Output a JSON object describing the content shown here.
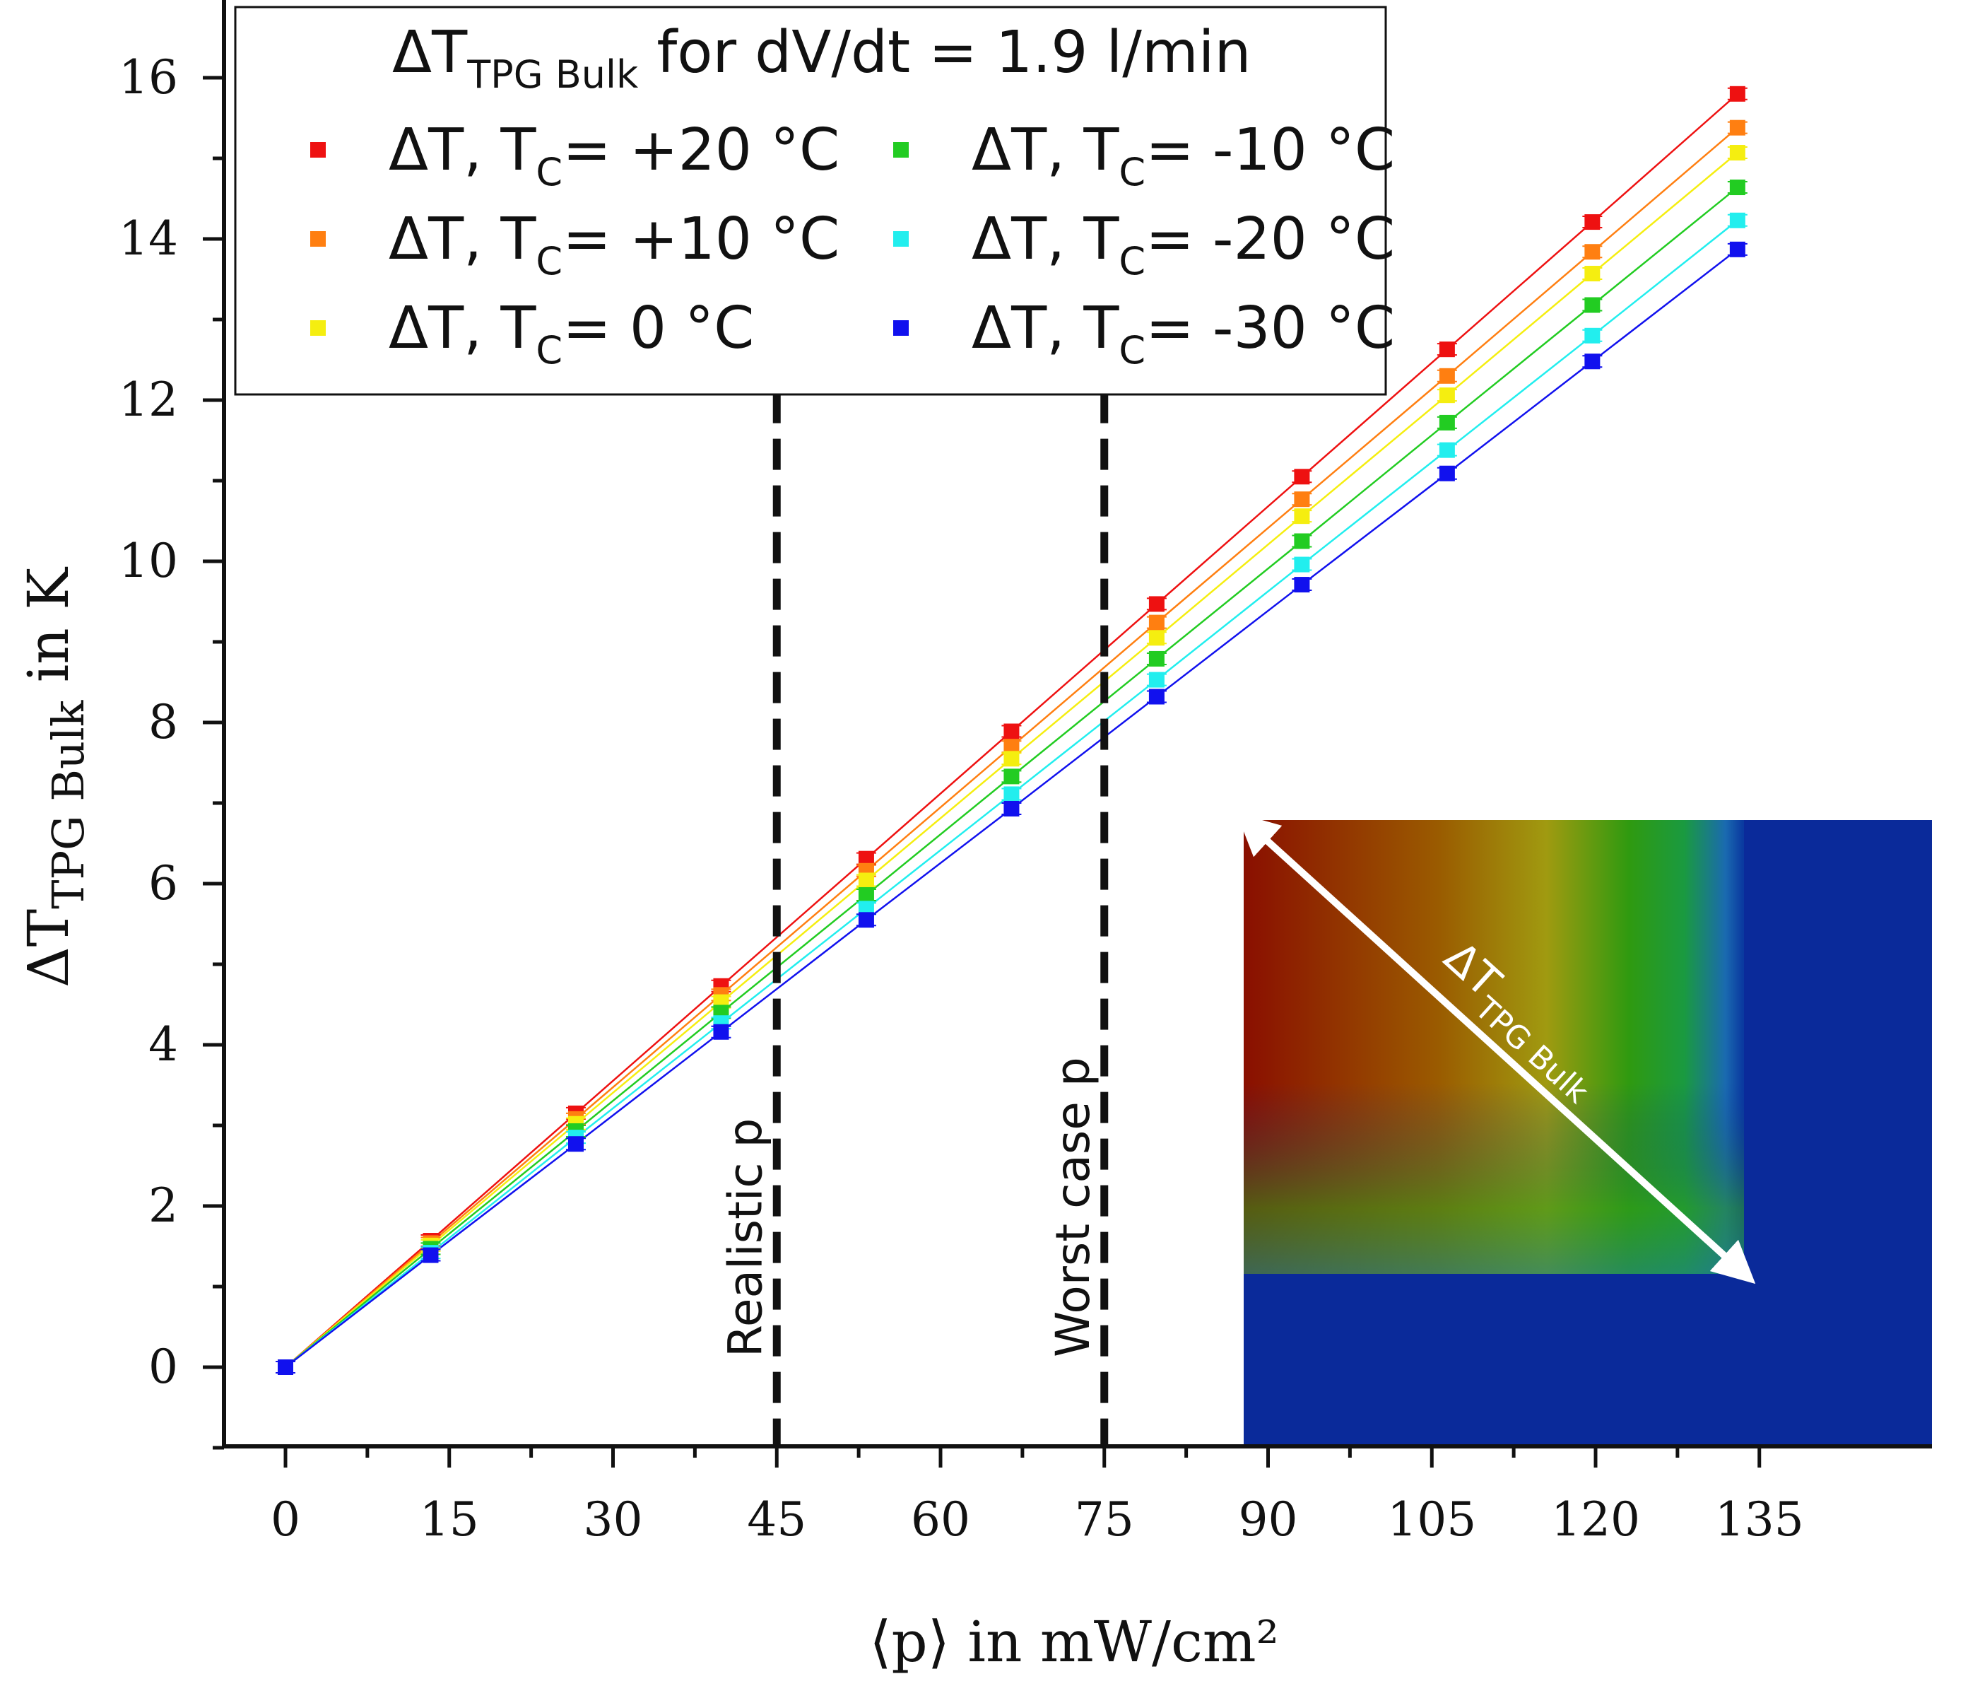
{
  "chart_data": {
    "type": "scatter",
    "title": "ΔT_TPG Bulk for dV/dt = 1.9 l/min",
    "title_main": "ΔT",
    "title_sub": "TPG Bulk",
    "title_rest": " for dV/dt = 1.9 l/min",
    "xlabel": "⟨p⟩ in mW/cm²",
    "ylabel_main": "ΔT",
    "ylabel_sub": "TPG Bulk",
    "ylabel_rest": "  in K",
    "xlim": [
      -5,
      135
    ],
    "ylim": [
      -1,
      16.4
    ],
    "xticks": [
      0,
      15,
      30,
      45,
      60,
      75,
      90,
      105,
      120,
      135
    ],
    "yticks": [
      0,
      2,
      4,
      6,
      8,
      10,
      12,
      14,
      16
    ],
    "grid": false,
    "legend_position": "top",
    "x": [
      0,
      13.3,
      26.6,
      39.9,
      53.2,
      66.5,
      79.8,
      93.1,
      106.4,
      119.7,
      133.0
    ],
    "series": [
      {
        "name": "ΔT, T_C= +20 °C",
        "label_main": "ΔT, T",
        "label_sub": "C",
        "label_rest": "= +20 °C",
        "color": "#ee1111",
        "values": [
          0,
          1.57,
          3.15,
          4.73,
          6.31,
          7.89,
          9.47,
          11.05,
          12.63,
          14.21,
          15.8
        ]
      },
      {
        "name": "ΔT, T_C= +10 °C",
        "label_main": "ΔT, T",
        "label_sub": "C",
        "label_rest": "= +10 °C",
        "color": "#ff7f11",
        "values": [
          0,
          1.54,
          3.08,
          4.62,
          6.16,
          7.7,
          9.24,
          10.77,
          12.3,
          13.84,
          15.38
        ]
      },
      {
        "name": "ΔT, T_C=    0 °C",
        "label_main": "ΔT, T",
        "label_sub": "C",
        "label_rest": "=    0 °C",
        "color": "#f5ee10",
        "values": [
          0,
          1.51,
          3.02,
          4.53,
          6.04,
          7.55,
          9.05,
          10.56,
          12.06,
          13.57,
          15.07
        ]
      },
      {
        "name": "ΔT, T_C= -10 °C",
        "label_main": "ΔT, T",
        "label_sub": "C",
        "label_rest": "= -10 °C",
        "color": "#22cc22",
        "values": [
          0,
          1.47,
          2.93,
          4.4,
          5.86,
          7.33,
          8.79,
          10.25,
          11.72,
          13.18,
          14.64
        ]
      },
      {
        "name": "ΔT, T_C= -20 °C",
        "label_main": "ΔT, T",
        "label_sub": "C",
        "label_rest": "= -20 °C",
        "color": "#22eeee",
        "values": [
          0,
          1.42,
          2.85,
          4.27,
          5.69,
          7.11,
          8.53,
          9.96,
          11.38,
          12.8,
          14.23
        ]
      },
      {
        "name": "ΔT, T_C= -30 °C",
        "label_main": "ΔT, T",
        "label_sub": "C",
        "label_rest": "= -30 °C",
        "color": "#1111ee",
        "values": [
          0,
          1.39,
          2.77,
          4.16,
          5.55,
          6.93,
          8.32,
          9.71,
          11.09,
          12.48,
          13.87
        ]
      }
    ],
    "vlines": [
      {
        "x": 45,
        "label": "Realistic p"
      },
      {
        "x": 75,
        "label": "Worst case p"
      }
    ],
    "inset": {
      "label_main": "ΔT",
      "label_sub": "TPG Bulk"
    }
  }
}
